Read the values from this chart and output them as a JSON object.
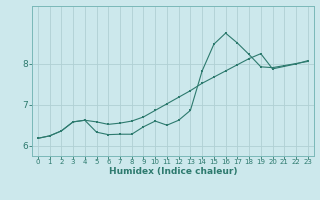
{
  "xlabel": "Humidex (Indice chaleur)",
  "background_color": "#cce8ec",
  "grid_color": "#b0d0d4",
  "line_color": "#2d7a6e",
  "spine_color": "#7ab8b8",
  "xlim": [
    -0.5,
    23.5
  ],
  "ylim": [
    5.75,
    9.4
  ],
  "xticks": [
    0,
    1,
    2,
    3,
    4,
    5,
    6,
    7,
    8,
    9,
    10,
    11,
    12,
    13,
    14,
    15,
    16,
    17,
    18,
    19,
    20,
    21,
    22,
    23
  ],
  "yticks": [
    6,
    7,
    8
  ],
  "curve1_x": [
    0,
    1,
    2,
    3,
    4,
    5,
    6,
    7,
    8,
    9,
    10,
    11,
    12,
    13,
    14,
    15,
    16,
    17,
    18,
    19,
    20,
    21,
    22,
    23
  ],
  "curve1_y": [
    6.18,
    6.24,
    6.36,
    6.58,
    6.62,
    6.33,
    6.27,
    6.28,
    6.28,
    6.46,
    6.6,
    6.5,
    6.62,
    6.86,
    7.82,
    8.47,
    8.74,
    8.5,
    8.22,
    7.92,
    7.9,
    7.95,
    8.0,
    8.05
  ],
  "curve2_x": [
    0,
    1,
    2,
    3,
    4,
    5,
    6,
    7,
    8,
    9,
    10,
    11,
    12,
    13,
    14,
    15,
    16,
    17,
    18,
    19,
    20,
    21,
    22,
    23
  ],
  "curve2_y": [
    6.18,
    6.24,
    6.36,
    6.58,
    6.62,
    6.58,
    6.52,
    6.55,
    6.6,
    6.7,
    6.86,
    7.02,
    7.18,
    7.34,
    7.52,
    7.67,
    7.82,
    7.97,
    8.12,
    8.24,
    7.87,
    7.93,
    7.99,
    8.07
  ]
}
